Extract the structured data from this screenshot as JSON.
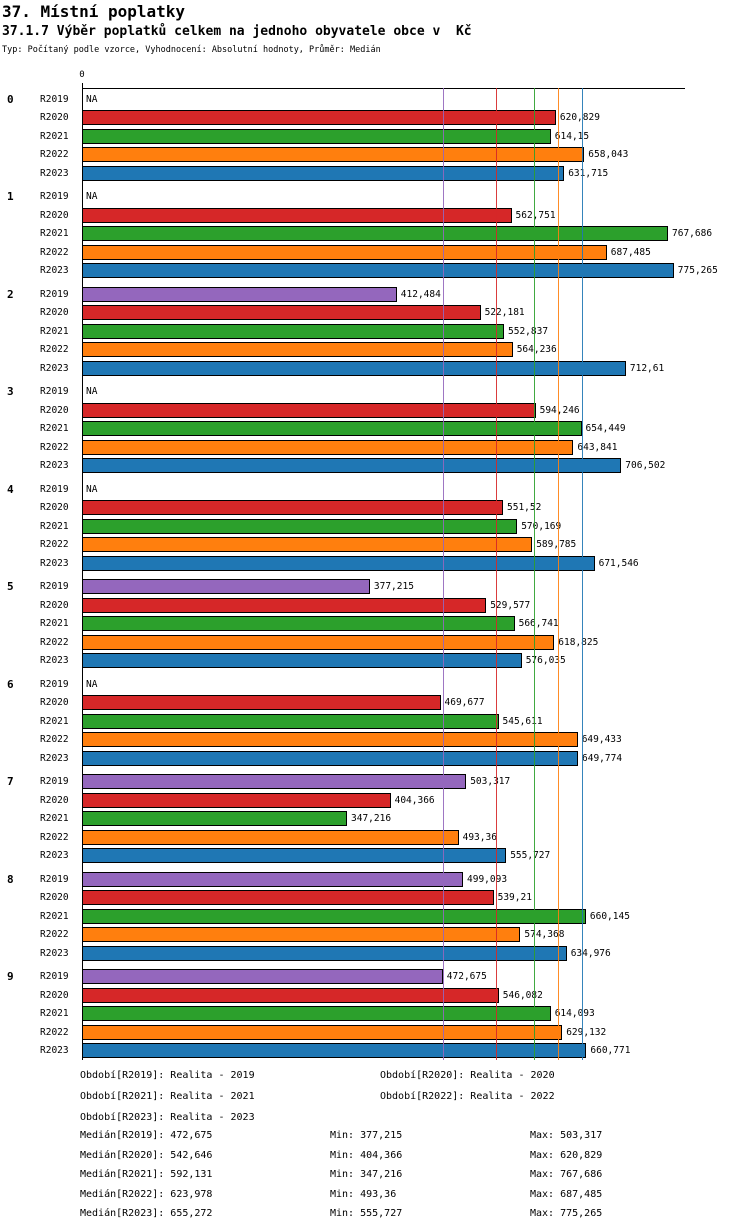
{
  "header": {
    "title": "37. Místní poplatky",
    "subtitle": "37.1.7 Výběr poplatků celkem na jednoho obyvatele obce v  Kč",
    "meta": "Typ: Počítaný podle vzorce, Vyhodnocení: Absolutní hodnoty, Průměr: Medián"
  },
  "chart_data": {
    "type": "bar",
    "orientation": "horizontal",
    "title": "37.1.7 Výběr poplatků celkem na jednoho obyvatele obce v Kč",
    "xlabel": "",
    "ylabel": "",
    "xlim": [
      0,
      790
    ],
    "zero_label": "0",
    "grid": "median-lines-only",
    "series": [
      {
        "name": "R2019",
        "color": "#9467bd"
      },
      {
        "name": "R2020",
        "color": "#d62728"
      },
      {
        "name": "R2021",
        "color": "#2ca02c"
      },
      {
        "name": "R2022",
        "color": "#ff7f0e"
      },
      {
        "name": "R2023",
        "color": "#1f77b4"
      }
    ],
    "median_lines": [
      {
        "series": "R2019",
        "value": 472.675
      },
      {
        "series": "R2020",
        "value": 542.646
      },
      {
        "series": "R2021",
        "value": 592.131
      },
      {
        "series": "R2022",
        "value": 623.978
      },
      {
        "series": "R2023",
        "value": 655.272
      }
    ],
    "groups": [
      {
        "label": "0",
        "bars": [
          {
            "series": "R2019",
            "value": null,
            "label": "NA"
          },
          {
            "series": "R2020",
            "value": 620.829,
            "label": "620,829"
          },
          {
            "series": "R2021",
            "value": 614.15,
            "label": "614,15"
          },
          {
            "series": "R2022",
            "value": 658.043,
            "label": "658,043"
          },
          {
            "series": "R2023",
            "value": 631.715,
            "label": "631,715"
          }
        ]
      },
      {
        "label": "1",
        "bars": [
          {
            "series": "R2019",
            "value": null,
            "label": "NA"
          },
          {
            "series": "R2020",
            "value": 562.751,
            "label": "562,751"
          },
          {
            "series": "R2021",
            "value": 767.686,
            "label": "767,686"
          },
          {
            "series": "R2022",
            "value": 687.485,
            "label": "687,485"
          },
          {
            "series": "R2023",
            "value": 775.265,
            "label": "775,265"
          }
        ]
      },
      {
        "label": "2",
        "bars": [
          {
            "series": "R2019",
            "value": 412.484,
            "label": "412,484"
          },
          {
            "series": "R2020",
            "value": 522.181,
            "label": "522,181"
          },
          {
            "series": "R2021",
            "value": 552.837,
            "label": "552,837"
          },
          {
            "series": "R2022",
            "value": 564.236,
            "label": "564,236"
          },
          {
            "series": "R2023",
            "value": 712.61,
            "label": "712,61"
          }
        ]
      },
      {
        "label": "3",
        "bars": [
          {
            "series": "R2019",
            "value": null,
            "label": "NA"
          },
          {
            "series": "R2020",
            "value": 594.246,
            "label": "594,246"
          },
          {
            "series": "R2021",
            "value": 654.449,
            "label": "654,449"
          },
          {
            "series": "R2022",
            "value": 643.841,
            "label": "643,841"
          },
          {
            "series": "R2023",
            "value": 706.502,
            "label": "706,502"
          }
        ]
      },
      {
        "label": "4",
        "bars": [
          {
            "series": "R2019",
            "value": null,
            "label": "NA"
          },
          {
            "series": "R2020",
            "value": 551.52,
            "label": "551,52"
          },
          {
            "series": "R2021",
            "value": 570.169,
            "label": "570,169"
          },
          {
            "series": "R2022",
            "value": 589.785,
            "label": "589,785"
          },
          {
            "series": "R2023",
            "value": 671.546,
            "label": "671,546"
          }
        ]
      },
      {
        "label": "5",
        "bars": [
          {
            "series": "R2019",
            "value": 377.215,
            "label": "377,215"
          },
          {
            "series": "R2020",
            "value": 529.577,
            "label": "529,577"
          },
          {
            "series": "R2021",
            "value": 566.741,
            "label": "566,741"
          },
          {
            "series": "R2022",
            "value": 618.825,
            "label": "618,825"
          },
          {
            "series": "R2023",
            "value": 576.035,
            "label": "576,035"
          }
        ]
      },
      {
        "label": "6",
        "bars": [
          {
            "series": "R2019",
            "value": null,
            "label": "NA"
          },
          {
            "series": "R2020",
            "value": 469.677,
            "label": "469,677"
          },
          {
            "series": "R2021",
            "value": 545.611,
            "label": "545,611"
          },
          {
            "series": "R2022",
            "value": 649.433,
            "label": "649,433"
          },
          {
            "series": "R2023",
            "value": 649.774,
            "label": "649,774"
          }
        ]
      },
      {
        "label": "7",
        "bars": [
          {
            "series": "R2019",
            "value": 503.317,
            "label": "503,317"
          },
          {
            "series": "R2020",
            "value": 404.366,
            "label": "404,366"
          },
          {
            "series": "R2021",
            "value": 347.216,
            "label": "347,216"
          },
          {
            "series": "R2022",
            "value": 493.36,
            "label": "493,36"
          },
          {
            "series": "R2023",
            "value": 555.727,
            "label": "555,727"
          }
        ]
      },
      {
        "label": "8",
        "bars": [
          {
            "series": "R2019",
            "value": 499.093,
            "label": "499,093"
          },
          {
            "series": "R2020",
            "value": 539.21,
            "label": "539,21"
          },
          {
            "series": "R2021",
            "value": 660.145,
            "label": "660,145"
          },
          {
            "series": "R2022",
            "value": 574.368,
            "label": "574,368"
          },
          {
            "series": "R2023",
            "value": 634.976,
            "label": "634,976"
          }
        ]
      },
      {
        "label": "9",
        "bars": [
          {
            "series": "R2019",
            "value": 472.675,
            "label": "472,675"
          },
          {
            "series": "R2020",
            "value": 546.082,
            "label": "546,082"
          },
          {
            "series": "R2021",
            "value": 614.093,
            "label": "614,093"
          },
          {
            "series": "R2022",
            "value": 629.132,
            "label": "629,132"
          },
          {
            "series": "R2023",
            "value": 660.771,
            "label": "660,771"
          }
        ]
      }
    ]
  },
  "legend": {
    "rows": [
      [
        "Období[R2019]: Realita - 2019",
        "Období[R2020]: Realita - 2020"
      ],
      [
        "Období[R2021]: Realita - 2021",
        "Období[R2022]: Realita - 2022"
      ],
      [
        "Období[R2023]: Realita - 2023",
        ""
      ]
    ]
  },
  "stats": {
    "rows": [
      [
        "Medián[R2019]: 472,675",
        "Min: 377,215",
        "Max: 503,317"
      ],
      [
        "Medián[R2020]: 542,646",
        "Min: 404,366",
        "Max: 620,829"
      ],
      [
        "Medián[R2021]: 592,131",
        "Min: 347,216",
        "Max: 767,686"
      ],
      [
        "Medián[R2022]: 623,978",
        "Min: 493,36",
        "Max: 687,485"
      ],
      [
        "Medián[R2023]: 655,272",
        "Min: 555,727",
        "Max: 775,265"
      ]
    ]
  }
}
